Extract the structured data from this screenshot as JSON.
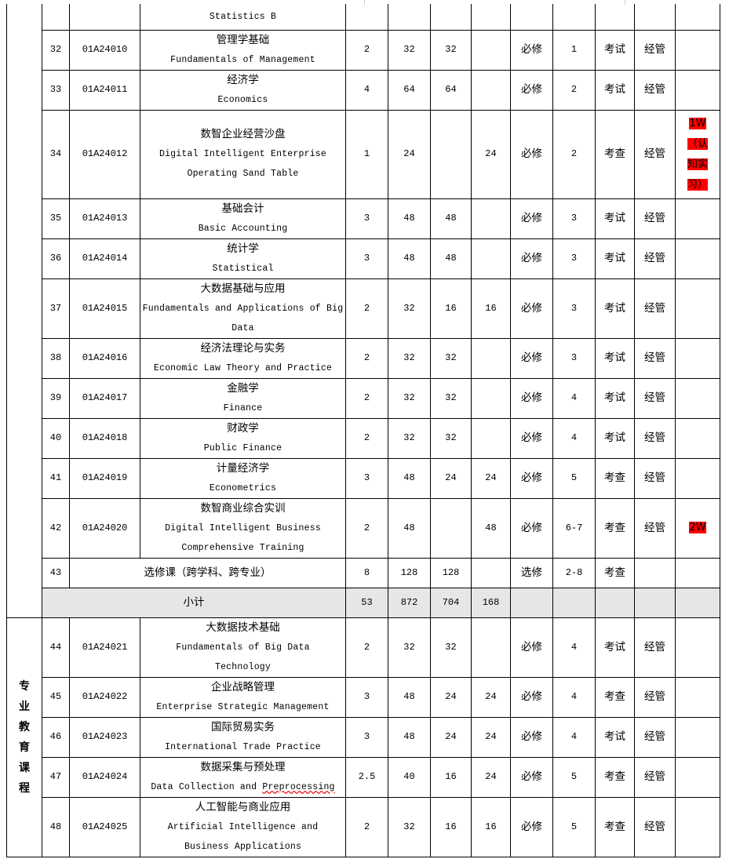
{
  "groups": [
    {
      "label": ""
    },
    {
      "label": "专业教育课程"
    }
  ],
  "partial_row": {
    "name_en": "Statistics B"
  },
  "rows": [
    {
      "no": "32",
      "code": "01A24010",
      "name_zh": "管理学基础",
      "name_en": [
        "Fundamentals of Management"
      ],
      "credits": "2",
      "hours": "32",
      "theory": "32",
      "practice": "",
      "type": "必修",
      "semester": "1",
      "assess": "考试",
      "dept": "经管",
      "remark": ""
    },
    {
      "no": "33",
      "code": "01A24011",
      "name_zh": "经济学",
      "name_en": [
        "Economics"
      ],
      "credits": "4",
      "hours": "64",
      "theory": "64",
      "practice": "",
      "type": "必修",
      "semester": "2",
      "assess": "考试",
      "dept": "经管",
      "remark": ""
    },
    {
      "no": "34",
      "code": "01A24012",
      "name_zh": "数智企业经营沙盘",
      "name_en": [
        "Digital Intelligent Enterprise",
        "Operating Sand Table"
      ],
      "credits": "1",
      "hours": "24",
      "theory": "",
      "practice": "24",
      "type": "必修",
      "semester": "2",
      "assess": "考查",
      "dept": "经管",
      "remark": "1W（认知实习）",
      "remark_highlight": "#ff0000"
    },
    {
      "no": "35",
      "code": "01A24013",
      "name_zh": "基础会计",
      "name_en": [
        "Basic Accounting"
      ],
      "credits": "3",
      "hours": "48",
      "theory": "48",
      "practice": "",
      "type": "必修",
      "semester": "3",
      "assess": "考试",
      "dept": "经管",
      "remark": ""
    },
    {
      "no": "36",
      "code": "01A24014",
      "name_zh": "统计学",
      "name_en": [
        "Statistical"
      ],
      "credits": "3",
      "hours": "48",
      "theory": "48",
      "practice": "",
      "type": "必修",
      "semester": "3",
      "assess": "考试",
      "dept": "经管",
      "remark": ""
    },
    {
      "no": "37",
      "code": "01A24015",
      "name_zh": "大数据基础与应用",
      "name_en": [
        "Fundamentals and Applications of Big",
        "Data"
      ],
      "credits": "2",
      "hours": "32",
      "theory": "16",
      "practice": "16",
      "type": "必修",
      "semester": "3",
      "assess": "考试",
      "dept": "经管",
      "remark": ""
    },
    {
      "no": "38",
      "code": "01A24016",
      "name_zh": "经济法理论与实务",
      "name_en": [
        "Economic Law Theory and Practice"
      ],
      "credits": "2",
      "hours": "32",
      "theory": "32",
      "practice": "",
      "type": "必修",
      "semester": "3",
      "assess": "考试",
      "dept": "经管",
      "remark": ""
    },
    {
      "no": "39",
      "code": "01A24017",
      "name_zh": "金融学",
      "name_en": [
        "Finance"
      ],
      "credits": "2",
      "hours": "32",
      "theory": "32",
      "practice": "",
      "type": "必修",
      "semester": "4",
      "assess": "考试",
      "dept": "经管",
      "remark": ""
    },
    {
      "no": "40",
      "code": "01A24018",
      "name_zh": "财政学",
      "name_en": [
        "Public Finance"
      ],
      "credits": "2",
      "hours": "32",
      "theory": "32",
      "practice": "",
      "type": "必修",
      "semester": "4",
      "assess": "考试",
      "dept": "经管",
      "remark": ""
    },
    {
      "no": "41",
      "code": "01A24019",
      "name_zh": "计量经济学",
      "name_en": [
        "Econometrics"
      ],
      "credits": "3",
      "hours": "48",
      "theory": "24",
      "practice": "24",
      "type": "必修",
      "semester": "5",
      "assess": "考查",
      "dept": "经管",
      "remark": ""
    },
    {
      "no": "42",
      "code": "01A24020",
      "name_zh": "数智商业综合实训",
      "name_en": [
        "Digital Intelligent Business",
        "Comprehensive Training"
      ],
      "credits": "2",
      "hours": "48",
      "theory": "",
      "practice": "48",
      "type": "必修",
      "semester": "6-7",
      "assess": "考查",
      "dept": "经管",
      "remark": "2W",
      "remark_highlight": "#ff0000"
    },
    {
      "no": "43",
      "merged_name": "选修课（跨学科、跨专业）",
      "credits": "8",
      "hours": "128",
      "theory": "128",
      "practice": "",
      "type": "选修",
      "semester": "2-8",
      "assess": "考查",
      "dept": "",
      "remark": ""
    },
    {
      "subtotal": "小计",
      "credits": "53",
      "hours": "872",
      "theory": "704",
      "practice": "168"
    },
    {
      "no": "44",
      "code": "01A24021",
      "name_zh": "大数据技术基础",
      "name_en": [
        "Fundamentals of  Big Data",
        "Technology"
      ],
      "credits": "2",
      "hours": "32",
      "theory": "32",
      "practice": "",
      "type": "必修",
      "semester": "4",
      "assess": "考试",
      "dept": "经管",
      "remark": ""
    },
    {
      "no": "45",
      "code": "01A24022",
      "name_zh": "企业战略管理",
      "name_en": [
        "Enterprise Strategic Management"
      ],
      "credits": "3",
      "hours": "48",
      "theory": "24",
      "practice": "24",
      "type": "必修",
      "semester": "4",
      "assess": "考查",
      "dept": "经管",
      "remark": ""
    },
    {
      "no": "46",
      "code": "01A24023",
      "name_zh": "国际贸易实务",
      "name_en": [
        "International Trade Practice"
      ],
      "credits": "3",
      "hours": "48",
      "theory": "24",
      "practice": "24",
      "type": "必修",
      "semester": "4",
      "assess": "考试",
      "dept": "经管",
      "remark": ""
    },
    {
      "no": "47",
      "code": "01A24024",
      "name_zh": "数据采集与预处理",
      "name_en": [
        "Data Collection and Preprocessing"
      ],
      "credits": "2.5",
      "hours": "40",
      "theory": "16",
      "practice": "24",
      "type": "必修",
      "semester": "5",
      "assess": "考查",
      "dept": "经管",
      "remark": ""
    },
    {
      "no": "48",
      "code": "01A24025",
      "name_zh": "人工智能与商业应用",
      "name_en": [
        "Artificial Intelligence and",
        "Business Applications"
      ],
      "credits": "2",
      "hours": "32",
      "theory": "16",
      "practice": "16",
      "type": "必修",
      "semester": "5",
      "assess": "考查",
      "dept": "经管",
      "remark": ""
    }
  ]
}
